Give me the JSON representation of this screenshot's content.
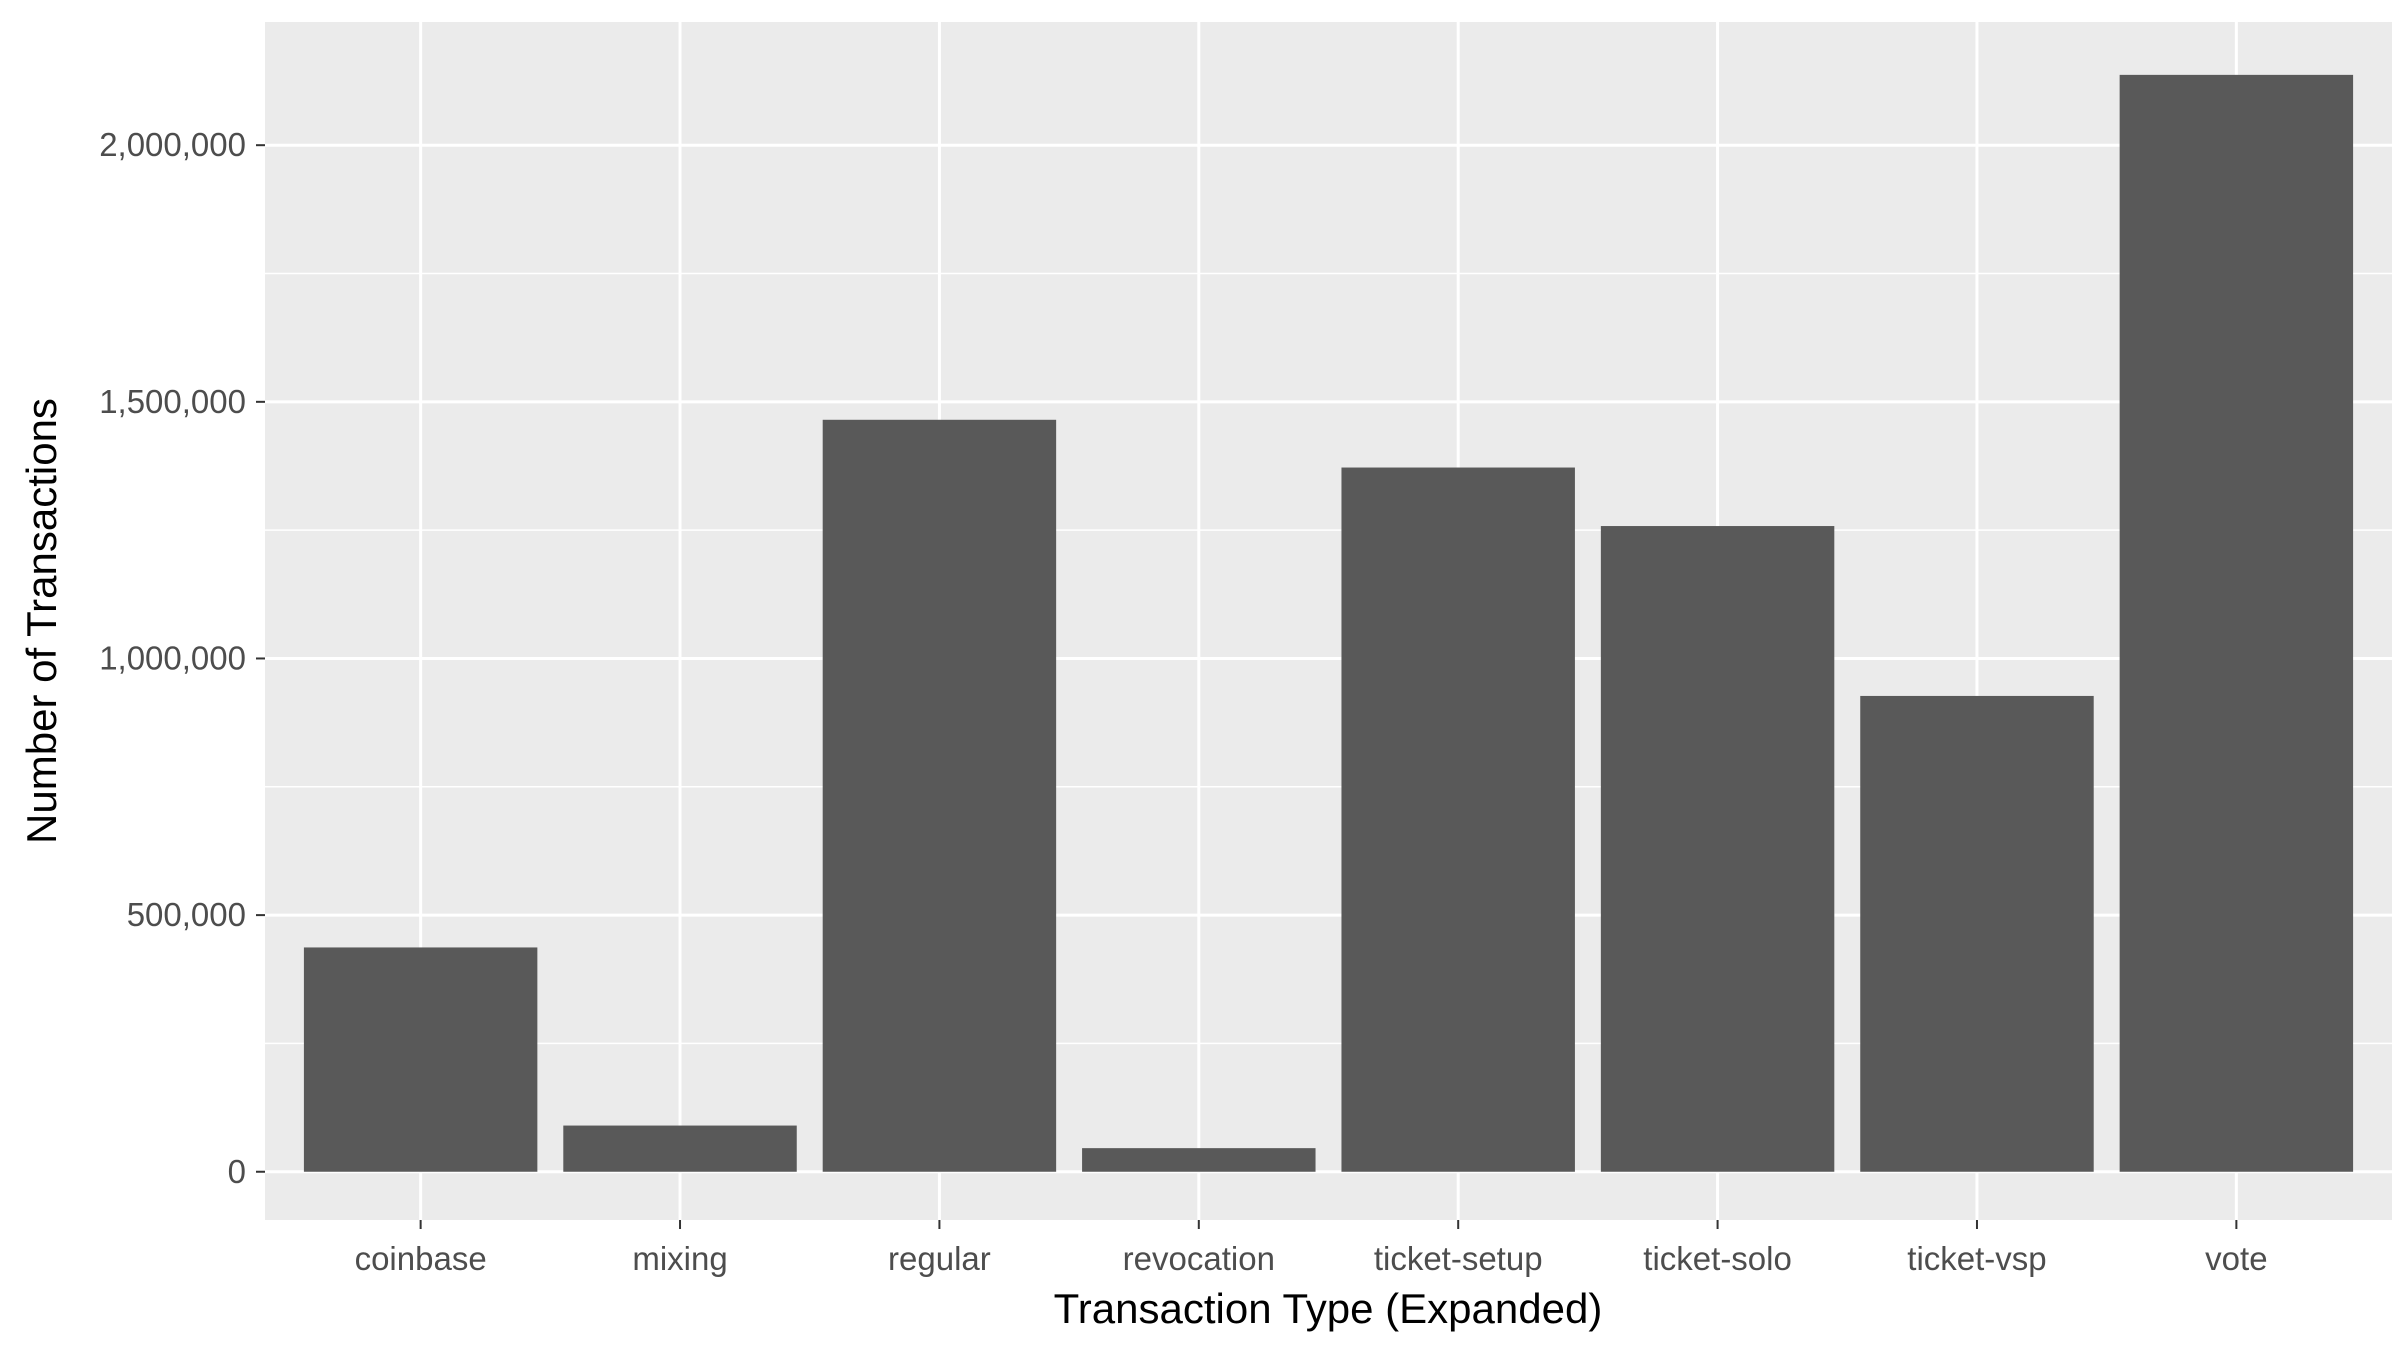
{
  "chart_data": {
    "type": "bar",
    "title": "",
    "xlabel": "Transaction Type (Expanded)",
    "ylabel": "Number of Transactions",
    "categories": [
      "coinbase",
      "mixing",
      "regular",
      "revocation",
      "ticket-setup",
      "ticket-solo",
      "ticket-vsp",
      "vote"
    ],
    "values": [
      437000,
      90000,
      1465000,
      46000,
      1372000,
      1258000,
      927000,
      2137000
    ],
    "ylim": [
      -94000,
      2240000
    ],
    "yticks": [
      0,
      500000,
      1000000,
      1500000,
      2000000
    ],
    "ytick_labels": [
      "0",
      "500,000",
      "1,000,000",
      "1,500,000",
      "2,000,000"
    ],
    "grid": true,
    "colors": {
      "panel": "#EBEBEB",
      "grid_major": "#FFFFFF",
      "bar": "#595959",
      "tick": "#333333"
    }
  }
}
